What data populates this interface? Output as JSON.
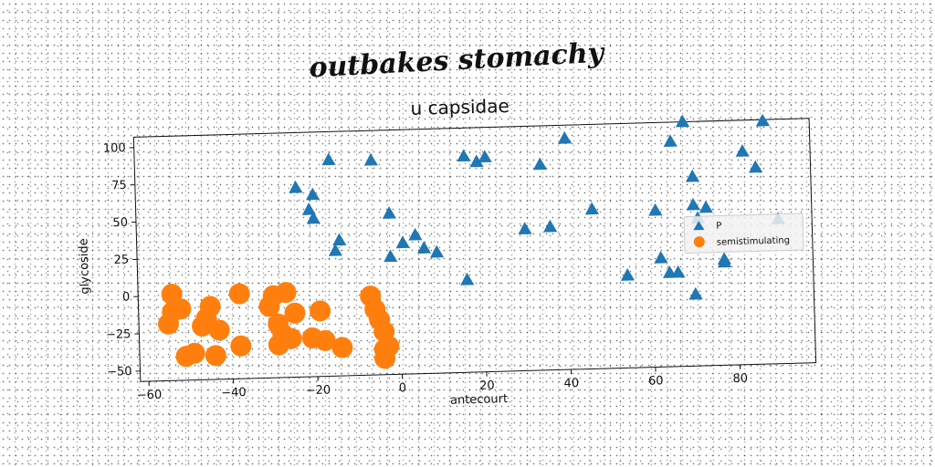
{
  "chart_data": {
    "type": "scatter",
    "suptitle": "outbakes stomachy",
    "title": "u capsidae",
    "xlabel": "antecourt",
    "ylabel": "glycoside",
    "xlim": [
      -62,
      98
    ],
    "ylim": [
      -57,
      107
    ],
    "xticks": [
      -60,
      -40,
      -20,
      0,
      20,
      40,
      60,
      80
    ],
    "yticks": [
      -50,
      -25,
      0,
      25,
      50,
      75,
      100
    ],
    "grid": false,
    "legend_position": "center-right",
    "series": [
      {
        "name": "P",
        "marker": "triangle",
        "color": "#1f77b4",
        "points": [
          [
            -24,
            70
          ],
          [
            -20,
            65
          ],
          [
            -21,
            55
          ],
          [
            -20,
            49
          ],
          [
            -16,
            88
          ],
          [
            -6,
            87
          ],
          [
            -15,
            27
          ],
          [
            -14,
            34
          ],
          [
            -2,
            51
          ],
          [
            -2,
            22
          ],
          [
            1,
            31
          ],
          [
            4,
            36
          ],
          [
            6,
            27
          ],
          [
            9,
            24
          ],
          [
            16,
            88
          ],
          [
            19,
            84
          ],
          [
            21,
            87
          ],
          [
            16,
            5
          ],
          [
            30,
            38
          ],
          [
            34,
            81
          ],
          [
            36,
            39
          ],
          [
            40,
            98
          ],
          [
            46,
            50
          ],
          [
            54,
            5
          ],
          [
            61,
            48
          ],
          [
            62,
            16
          ],
          [
            64,
            6
          ],
          [
            66,
            6
          ],
          [
            65,
            94
          ],
          [
            68,
            107
          ],
          [
            70,
            70
          ],
          [
            70,
            51
          ],
          [
            71,
            42
          ],
          [
            73,
            49
          ],
          [
            70,
            -9
          ],
          [
            77,
            14
          ],
          [
            77,
            12
          ],
          [
            82,
            86
          ],
          [
            85,
            75
          ],
          [
            87,
            106
          ],
          [
            90,
            40
          ]
        ]
      },
      {
        "name": "semistimulating",
        "marker": "circle",
        "color": "#ff7f0e",
        "points": [
          [
            -54,
            1
          ],
          [
            -54,
            -11
          ],
          [
            -55,
            -19
          ],
          [
            -52,
            -9
          ],
          [
            -51,
            -41
          ],
          [
            -49,
            -39
          ],
          [
            -47,
            -21
          ],
          [
            -46,
            -16
          ],
          [
            -45,
            -8
          ],
          [
            -44,
            -41
          ],
          [
            -43,
            -24
          ],
          [
            -38,
            -35
          ],
          [
            -38,
            0
          ],
          [
            -31,
            -9
          ],
          [
            -30,
            -2
          ],
          [
            -29,
            -21
          ],
          [
            -29,
            -35
          ],
          [
            -28,
            -28
          ],
          [
            -27,
            0
          ],
          [
            -26,
            -31
          ],
          [
            -25,
            -14
          ],
          [
            -21,
            -31
          ],
          [
            -19,
            -13
          ],
          [
            -18,
            -33
          ],
          [
            -14,
            -38
          ],
          [
            -7,
            -4
          ],
          [
            -6,
            -13
          ],
          [
            -5,
            -20
          ],
          [
            -4,
            -28
          ],
          [
            -4,
            -40
          ],
          [
            -4,
            -46
          ],
          [
            -3,
            -38
          ]
        ]
      }
    ]
  }
}
